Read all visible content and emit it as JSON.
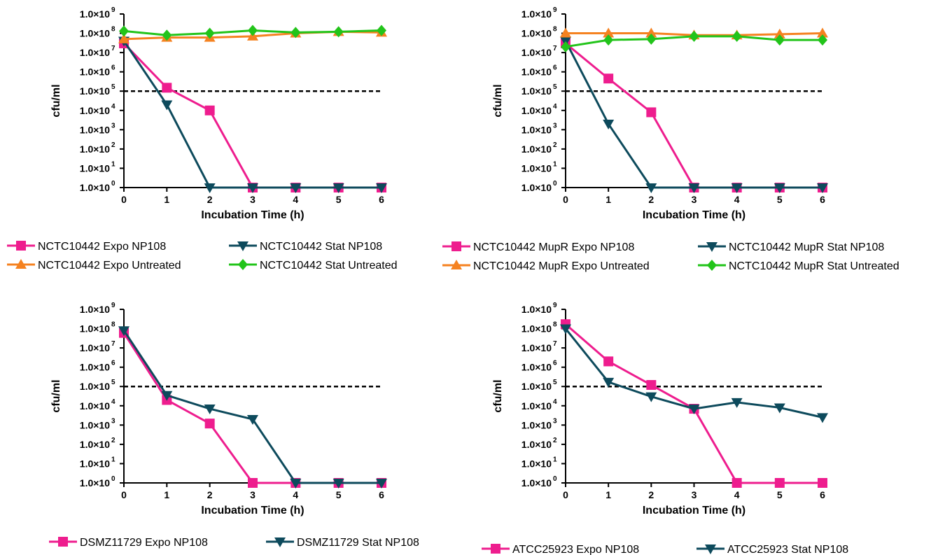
{
  "chart_data": [
    {
      "type": "line",
      "xlabel": "Incubation Time (h)",
      "ylabel": "cfu/ml",
      "y_scale": "log",
      "xlim": [
        0,
        6
      ],
      "ylim": [
        1,
        1000000000
      ],
      "x": [
        0,
        1,
        2,
        3,
        4,
        5,
        6
      ],
      "x_tick_labels": [
        "0",
        "1",
        "2",
        "3",
        "4",
        "5",
        "6"
      ],
      "y_tick_mantissa": [
        "1.0×10",
        "1.0×10",
        "1.0×10",
        "1.0×10",
        "1.0×10",
        "1.0×10",
        "1.0×10",
        "1.0×10",
        "1.0×10",
        "1.0×10"
      ],
      "y_tick_exponents": [
        "0",
        "1",
        "2",
        "3",
        "4",
        "5",
        "6",
        "7",
        "8",
        "9"
      ],
      "threshold": 100000,
      "legend_position": "bottom",
      "series": [
        {
          "name": "NCTC10442 Expo NP108",
          "color": "#ee1d8e",
          "marker": "square",
          "values": [
            30000000,
            150000,
            10000,
            1,
            1,
            1,
            1
          ]
        },
        {
          "name": "NCTC10442 Stat NP108",
          "color": "#0d4a5c",
          "marker": "triangle-down",
          "values": [
            40000000,
            20000,
            1,
            1,
            1,
            1,
            1
          ]
        },
        {
          "name": "NCTC10442 Expo Untreated",
          "color": "#f58220",
          "marker": "triangle-up",
          "values": [
            50000000,
            60000000,
            60000000,
            70000000,
            100000000,
            120000000,
            110000000
          ]
        },
        {
          "name": "NCTC10442 Stat Untreated",
          "color": "#22c41a",
          "marker": "diamond",
          "values": [
            130000000,
            80000000,
            100000000,
            140000000,
            110000000,
            120000000,
            140000000
          ]
        }
      ]
    },
    {
      "type": "line",
      "xlabel": "Incubation Time (h)",
      "ylabel": "cfu/ml",
      "y_scale": "log",
      "xlim": [
        0,
        6
      ],
      "ylim": [
        1,
        1000000000
      ],
      "x": [
        0,
        1,
        2,
        3,
        4,
        5,
        6
      ],
      "x_tick_labels": [
        "0",
        "1",
        "2",
        "3",
        "4",
        "5",
        "6"
      ],
      "y_tick_mantissa": [
        "1.0×10",
        "1.0×10",
        "1.0×10",
        "1.0×10",
        "1.0×10",
        "1.0×10",
        "1.0×10",
        "1.0×10",
        "1.0×10",
        "1.0×10"
      ],
      "y_tick_exponents": [
        "0",
        "1",
        "2",
        "3",
        "4",
        "5",
        "6",
        "7",
        "8",
        "9"
      ],
      "threshold": 100000,
      "legend_position": "bottom",
      "series": [
        {
          "name": "NCTC10442 MupR Expo NP108",
          "color": "#ee1d8e",
          "marker": "square",
          "values": [
            30000000,
            450000,
            8000,
            1,
            1,
            1,
            1
          ]
        },
        {
          "name": "NCTC10442 MupR Stat NP108",
          "color": "#0d4a5c",
          "marker": "triangle-down",
          "values": [
            40000000,
            2000,
            1,
            1,
            1,
            1,
            1
          ]
        },
        {
          "name": "NCTC10442 MupR Expo Untreated",
          "color": "#f58220",
          "marker": "triangle-up",
          "values": [
            100000000,
            100000000,
            100000000,
            80000000,
            80000000,
            90000000,
            100000000
          ]
        },
        {
          "name": "NCTC10442 MupR Stat Untreated",
          "color": "#22c41a",
          "marker": "diamond",
          "values": [
            20000000,
            45000000,
            50000000,
            70000000,
            70000000,
            45000000,
            45000000
          ]
        }
      ]
    },
    {
      "type": "line",
      "xlabel": "Incubation Time (h)",
      "ylabel": "cfu/ml",
      "y_scale": "log",
      "xlim": [
        0,
        6
      ],
      "ylim": [
        1,
        1000000000
      ],
      "x": [
        0,
        1,
        2,
        3,
        4,
        5,
        6
      ],
      "x_tick_labels": [
        "0",
        "1",
        "2",
        "3",
        "4",
        "5",
        "6"
      ],
      "y_tick_mantissa": [
        "1.0×10",
        "1.0×10",
        "1.0×10",
        "1.0×10",
        "1.0×10",
        "1.0×10",
        "1.0×10",
        "1.0×10",
        "1.0×10",
        "1.0×10"
      ],
      "y_tick_exponents": [
        "0",
        "1",
        "2",
        "3",
        "4",
        "5",
        "6",
        "7",
        "8",
        "9"
      ],
      "threshold": 100000,
      "legend_position": "bottom",
      "series": [
        {
          "name": "DSMZ11729 Expo NP108",
          "color": "#ee1d8e",
          "marker": "square",
          "values": [
            60000000,
            20000,
            1200,
            1,
            1,
            1,
            1
          ]
        },
        {
          "name": "DSMZ11729 Stat NP108",
          "color": "#0d4a5c",
          "marker": "triangle-down",
          "values": [
            80000000,
            35000,
            7000,
            2000,
            1,
            1,
            1
          ]
        }
      ]
    },
    {
      "type": "line",
      "xlabel": "Incubation Time (h)",
      "ylabel": "cfu/ml",
      "y_scale": "log",
      "xlim": [
        0,
        6
      ],
      "ylim": [
        1,
        1000000000
      ],
      "x": [
        0,
        1,
        2,
        3,
        4,
        5,
        6
      ],
      "x_tick_labels": [
        "0",
        "1",
        "2",
        "3",
        "4",
        "5",
        "6"
      ],
      "y_tick_mantissa": [
        "1.0×10",
        "1.0×10",
        "1.0×10",
        "1.0×10",
        "1.0×10",
        "1.0×10",
        "1.0×10",
        "1.0×10",
        "1.0×10",
        "1.0×10"
      ],
      "y_tick_exponents": [
        "0",
        "1",
        "2",
        "3",
        "4",
        "5",
        "6",
        "7",
        "8",
        "9"
      ],
      "threshold": 100000,
      "legend_position": "bottom",
      "series": [
        {
          "name": "ATCC25923 Expo NP108",
          "color": "#ee1d8e",
          "marker": "square",
          "values": [
            170000000,
            2000000,
            120000,
            7000,
            1,
            1,
            1
          ]
        },
        {
          "name": "ATCC25923 Stat NP108",
          "color": "#0d4a5c",
          "marker": "triangle-down",
          "values": [
            100000000,
            170000,
            30000,
            7000,
            15000,
            8000,
            2500
          ]
        }
      ]
    }
  ]
}
